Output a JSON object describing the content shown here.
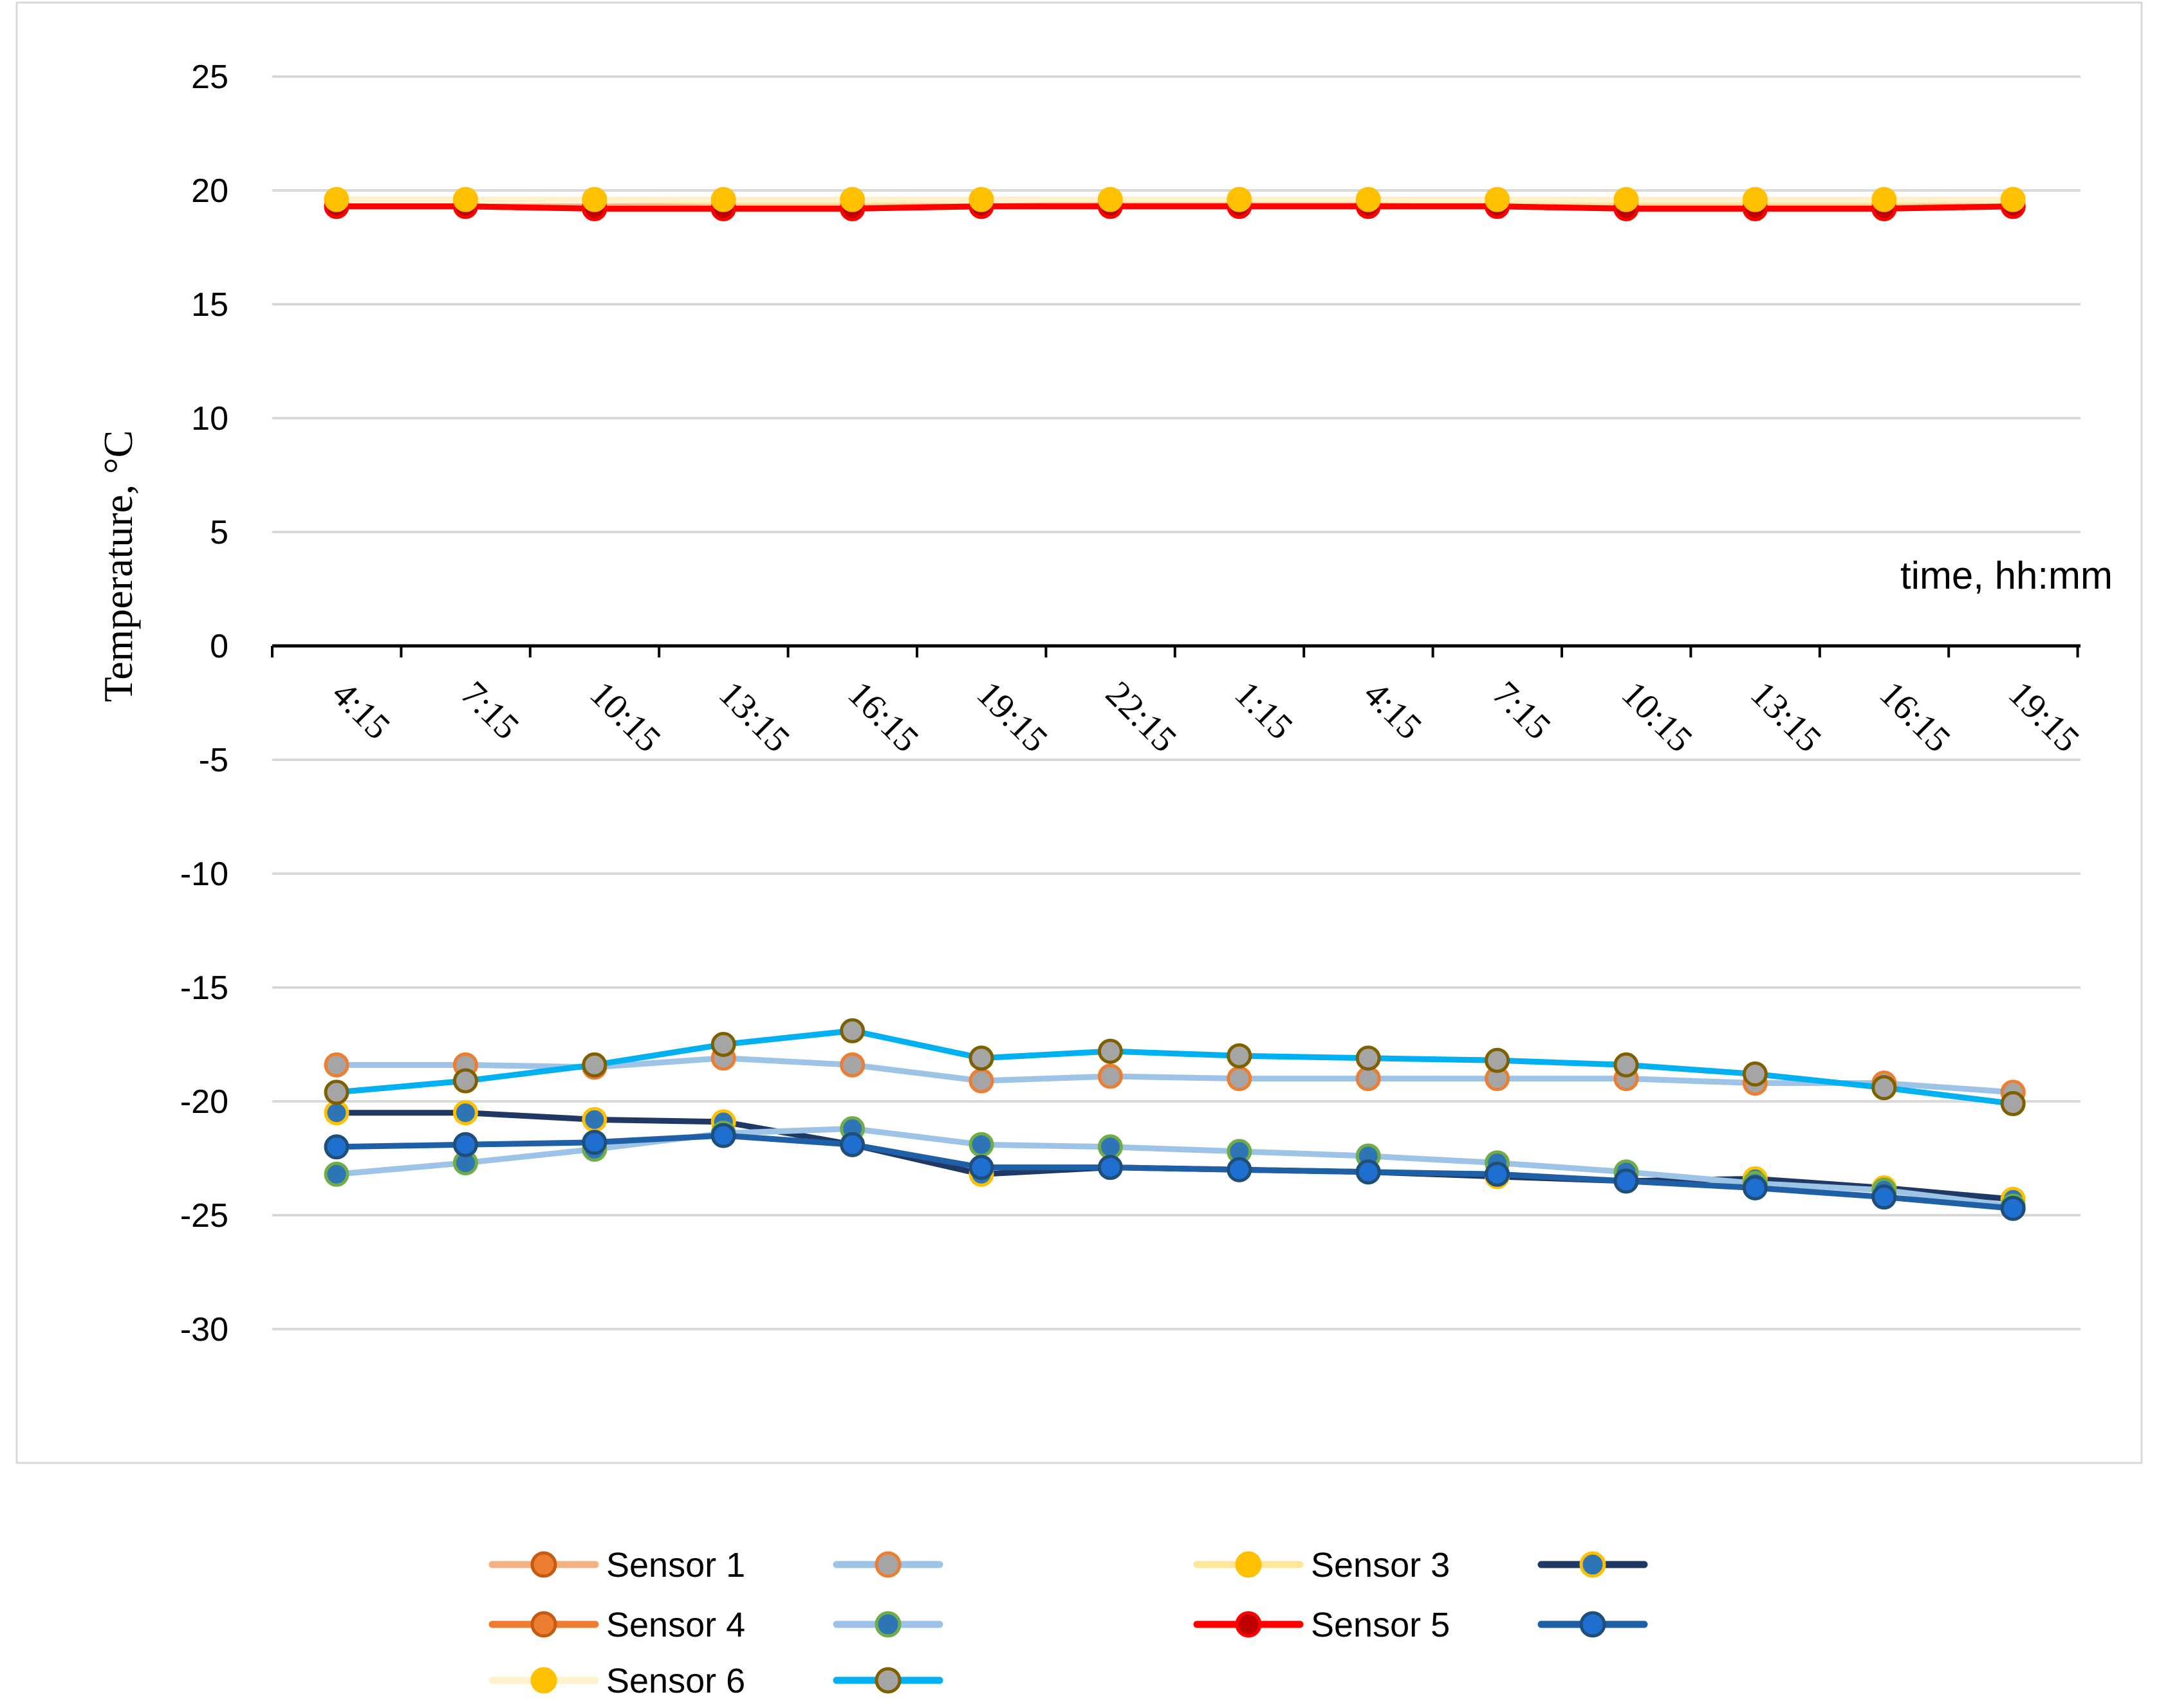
{
  "chart_data": {
    "type": "line",
    "title": "",
    "xlabel": "time, hh:mm",
    "ylabel": "Temperature, °C",
    "ylim": [
      -35,
      25
    ],
    "yticks": [
      25,
      20,
      15,
      10,
      5,
      0,
      -5,
      -10,
      -15,
      -20,
      -25,
      -30
    ],
    "categories": [
      "4:15",
      "7:15",
      "10:15",
      "13:15",
      "16:15",
      "19:15",
      "22:15",
      "1:15",
      "4:15",
      "7:15",
      "10:15",
      "13:15",
      "16:15",
      "19:15"
    ],
    "series": [
      {
        "name": "Sensor 1",
        "line": "#f4b183",
        "marker": "#ed7d31",
        "edge": "#c55a11",
        "values": [
          19.3,
          19.3,
          19.3,
          19.3,
          19.3,
          19.3,
          19.4,
          19.4,
          19.4,
          19.3,
          19.3,
          19.3,
          19.3,
          19.3
        ]
      },
      {
        "name": "",
        "line": "#9dc3e6",
        "marker": "#a5a5a5",
        "edge": "#ed7d31",
        "values": [
          -18.4,
          -18.4,
          -18.5,
          -18.1,
          -18.4,
          -19.1,
          -18.9,
          -19.0,
          -19.0,
          -19.0,
          -19.0,
          -19.2,
          -19.2,
          -19.6
        ]
      },
      {
        "name": "Sensor 3",
        "line": "#ffe699",
        "marker": "#ffc000",
        "edge": "#ffc000",
        "values": [
          19.6,
          19.6,
          19.6,
          19.5,
          19.5,
          19.6,
          19.6,
          19.6,
          19.6,
          19.5,
          19.5,
          19.5,
          19.5,
          19.6
        ]
      },
      {
        "name": "",
        "line": "#203864",
        "marker": "#2e75b6",
        "edge": "#ffc000",
        "values": [
          -20.5,
          -20.5,
          -20.8,
          -20.9,
          -21.9,
          -23.2,
          -22.9,
          -23.0,
          -23.1,
          -23.3,
          -23.5,
          -23.4,
          -23.8,
          -24.3
        ]
      },
      {
        "name": "Sensor 4",
        "line": "#ed7d31",
        "marker": "#ed7d31",
        "edge": "#c55a11",
        "values": [
          19.3,
          19.3,
          19.2,
          19.2,
          19.2,
          19.3,
          19.3,
          19.3,
          19.3,
          19.3,
          19.2,
          19.2,
          19.2,
          19.3
        ]
      },
      {
        "name": "",
        "line": "#9dc3e6",
        "marker": "#2e75b6",
        "edge": "#70ad47",
        "values": [
          -23.2,
          -22.7,
          -22.1,
          -21.4,
          -21.2,
          -21.9,
          -22.0,
          -22.2,
          -22.4,
          -22.7,
          -23.1,
          -23.6,
          -23.9,
          -24.6
        ]
      },
      {
        "name": "Sensor 5",
        "line": "#ff0000",
        "marker": "#c00000",
        "edge": "#ff0000",
        "values": [
          19.3,
          19.3,
          19.2,
          19.2,
          19.2,
          19.3,
          19.3,
          19.3,
          19.3,
          19.3,
          19.2,
          19.2,
          19.2,
          19.3
        ]
      },
      {
        "name": "",
        "line": "#1f5fa5",
        "marker": "#1f6fd0",
        "edge": "#1f4e79",
        "values": [
          -22.0,
          -21.9,
          -21.8,
          -21.5,
          -21.9,
          -22.9,
          -22.9,
          -23.0,
          -23.1,
          -23.2,
          -23.5,
          -23.8,
          -24.2,
          -24.7
        ]
      },
      {
        "name": "Sensor 6",
        "line": "#fff2cc",
        "marker": "#ffc000",
        "edge": "#ffc000",
        "values": [
          19.6,
          19.6,
          19.6,
          19.6,
          19.6,
          19.6,
          19.6,
          19.6,
          19.6,
          19.6,
          19.6,
          19.6,
          19.6,
          19.6
        ]
      },
      {
        "name": "",
        "line": "#00b0f0",
        "marker": "#a5a5a5",
        "edge": "#7f6000",
        "values": [
          -19.6,
          -19.1,
          -18.4,
          -17.5,
          -16.9,
          -18.1,
          -17.8,
          -18.0,
          -18.1,
          -18.2,
          -18.4,
          -18.8,
          -19.4,
          -20.1
        ]
      }
    ],
    "legend": {
      "placement": "bottom",
      "entries": [
        "Sensor 1",
        "",
        "Sensor 3",
        "",
        "Sensor 4",
        "",
        "Sensor 5",
        "",
        "Sensor 6",
        ""
      ]
    }
  }
}
